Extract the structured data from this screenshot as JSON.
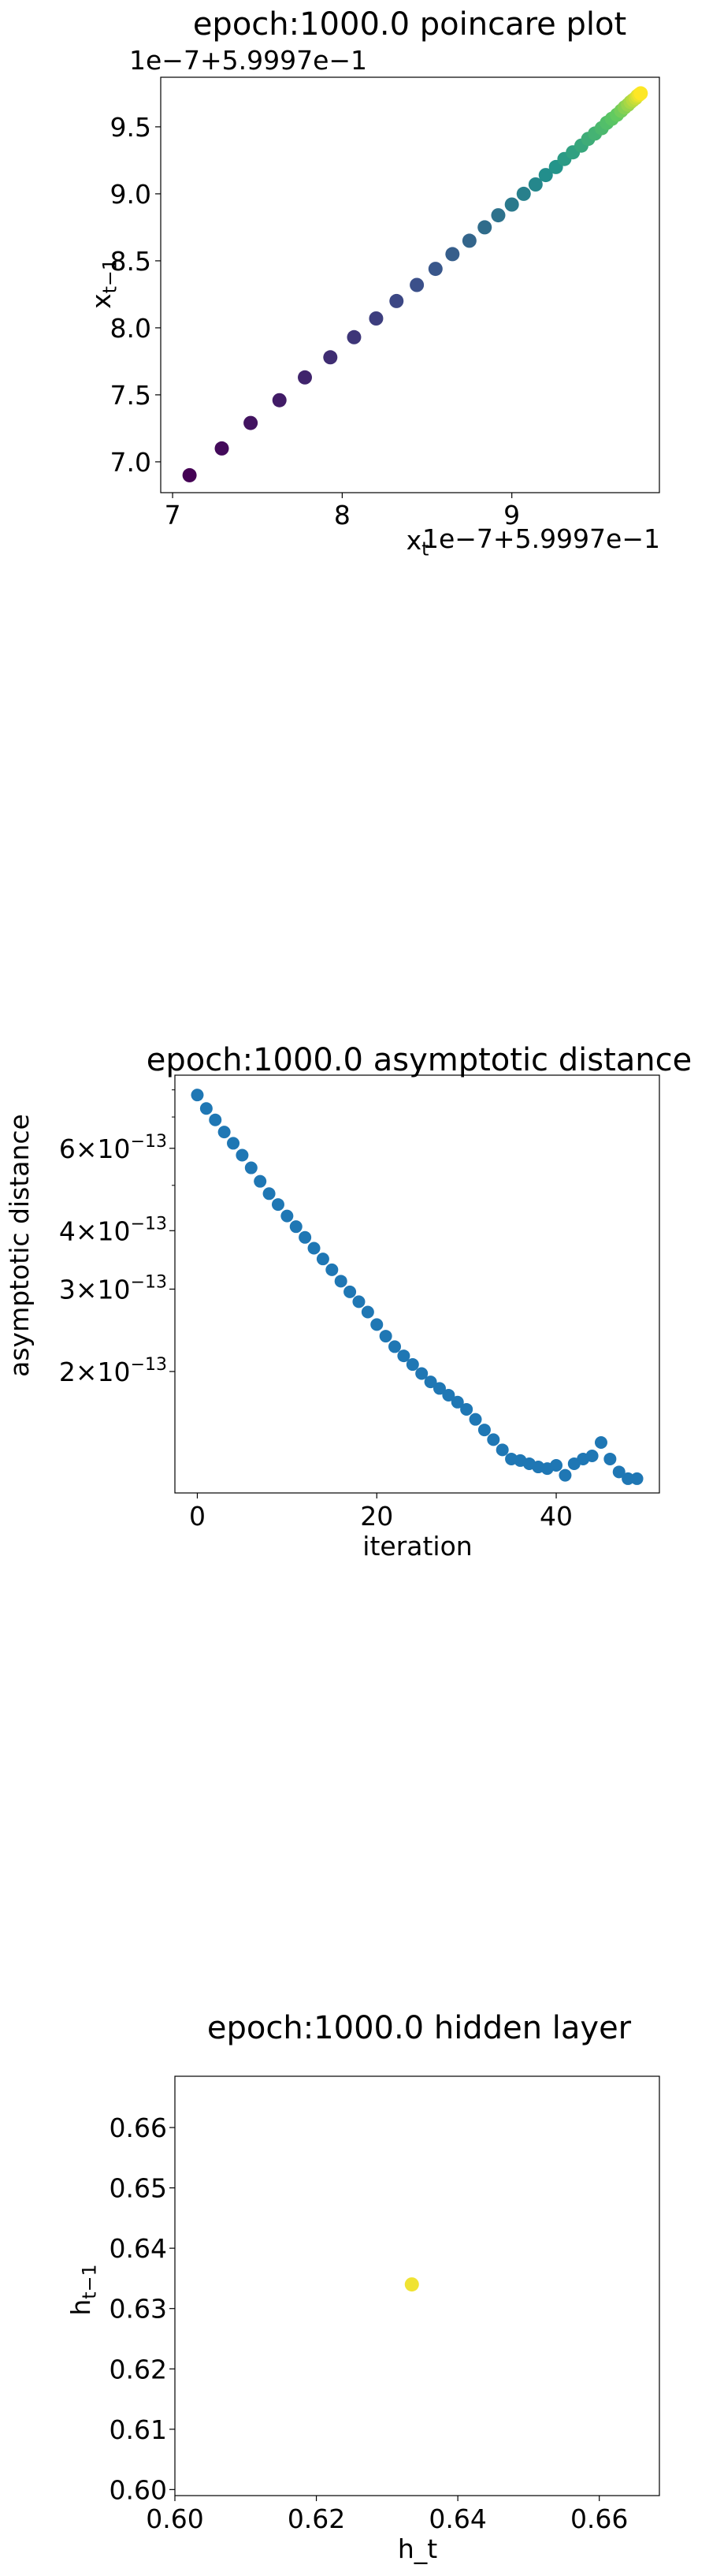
{
  "chart_data": [
    {
      "type": "scatter",
      "title": "epoch:1000.0 poincare plot",
      "xlabel": "x_t",
      "ylabel": "x_{t-1}",
      "x_offset_label": "1e−7+5.9997e−1",
      "y_offset_label": "1e−7+5.9997e−1",
      "xlim": [
        6.93,
        9.87
      ],
      "ylim": [
        6.77,
        9.87
      ],
      "xticks": [
        7,
        8,
        9
      ],
      "xtick_labels": [
        "7",
        "8",
        "9"
      ],
      "yticks": [
        7.0,
        7.5,
        8.0,
        8.5,
        9.0,
        9.5
      ],
      "ytick_labels": [
        "7.0",
        "7.5",
        "8.0",
        "8.5",
        "9.0",
        "9.5"
      ],
      "colormap": "viridis",
      "x": [
        7.1,
        7.29,
        7.46,
        7.63,
        7.78,
        7.93,
        8.07,
        8.2,
        8.32,
        8.44,
        8.55,
        8.65,
        8.75,
        8.84,
        8.92,
        9.0,
        9.07,
        9.14,
        9.2,
        9.26,
        9.31,
        9.36,
        9.41,
        9.45,
        9.49,
        9.53,
        9.56,
        9.59,
        9.62,
        9.645,
        9.665,
        9.685,
        9.7,
        9.715,
        9.73,
        9.74,
        9.75,
        9.76
      ],
      "y": [
        6.9,
        7.1,
        7.29,
        7.46,
        7.63,
        7.78,
        7.93,
        8.07,
        8.2,
        8.32,
        8.44,
        8.55,
        8.65,
        8.75,
        8.84,
        8.92,
        9.0,
        9.07,
        9.14,
        9.2,
        9.26,
        9.31,
        9.36,
        9.41,
        9.45,
        9.49,
        9.53,
        9.56,
        9.59,
        9.62,
        9.645,
        9.665,
        9.685,
        9.7,
        9.715,
        9.73,
        9.74,
        9.75
      ]
    },
    {
      "type": "scatter",
      "title": "epoch:1000.0 asymptotic distance",
      "xlabel": "iteration",
      "ylabel": "asymptotic distance",
      "yscale": "log",
      "xlim": [
        -2.5,
        51.5
      ],
      "ylim": [
        1.1e-13,
        8.6e-13
      ],
      "xticks": [
        0,
        20,
        40
      ],
      "xtick_labels": [
        "0",
        "20",
        "40"
      ],
      "yticks": [
        2e-13,
        3e-13,
        4e-13,
        6e-13
      ],
      "ytick_labels": [
        {
          "mantissa": "2",
          "exp": "−13"
        },
        {
          "mantissa": "3",
          "exp": "−13"
        },
        {
          "mantissa": "4",
          "exp": "−13"
        },
        {
          "mantissa": "6",
          "exp": "−13"
        }
      ],
      "color": "#1f77b4",
      "x": [
        0,
        1,
        2,
        3,
        4,
        5,
        6,
        7,
        8,
        9,
        10,
        11,
        12,
        13,
        14,
        15,
        16,
        17,
        18,
        19,
        20,
        21,
        22,
        23,
        24,
        25,
        26,
        27,
        28,
        29,
        30,
        31,
        32,
        33,
        34,
        35,
        36,
        37,
        38,
        39,
        40,
        41,
        42,
        43,
        44,
        45,
        46,
        47,
        48,
        49
      ],
      "y": [
        7.8e-13,
        7.3e-13,
        6.9e-13,
        6.5e-13,
        6.15e-13,
        5.8e-13,
        5.45e-13,
        5.1e-13,
        4.8e-13,
        4.55e-13,
        4.3e-13,
        4.08e-13,
        3.87e-13,
        3.67e-13,
        3.48e-13,
        3.3e-13,
        3.12e-13,
        2.96e-13,
        2.82e-13,
        2.68e-13,
        2.52e-13,
        2.38e-13,
        2.26e-13,
        2.16e-13,
        2.07e-13,
        1.98e-13,
        1.9e-13,
        1.84e-13,
        1.78e-13,
        1.72e-13,
        1.66e-13,
        1.58e-13,
        1.5e-13,
        1.43e-13,
        1.36e-13,
        1.3e-13,
        1.29e-13,
        1.27e-13,
        1.25e-13,
        1.24e-13,
        1.26e-13,
        1.2e-13,
        1.27e-13,
        1.3e-13,
        1.32e-13,
        1.41e-13,
        1.3e-13,
        1.22e-13,
        1.18e-13,
        1.18e-13
      ]
    },
    {
      "type": "scatter",
      "title": "epoch:1000.0 hidden layer",
      "xlabel": "h_t",
      "ylabel": "h_{t-1}",
      "xlim": [
        0.6,
        0.6685
      ],
      "ylim": [
        0.599,
        0.6685
      ],
      "xticks": [
        0.6,
        0.62,
        0.64,
        0.66
      ],
      "xtick_labels": [
        "0.60",
        "0.62",
        "0.64",
        "0.66"
      ],
      "yticks": [
        0.6,
        0.61,
        0.62,
        0.63,
        0.64,
        0.65,
        0.66
      ],
      "ytick_labels": [
        "0.60",
        "0.61",
        "0.62",
        "0.63",
        "0.64",
        "0.65",
        "0.66"
      ],
      "color": "#f0e333",
      "x": [
        0.6335
      ],
      "y": [
        0.634
      ]
    }
  ]
}
